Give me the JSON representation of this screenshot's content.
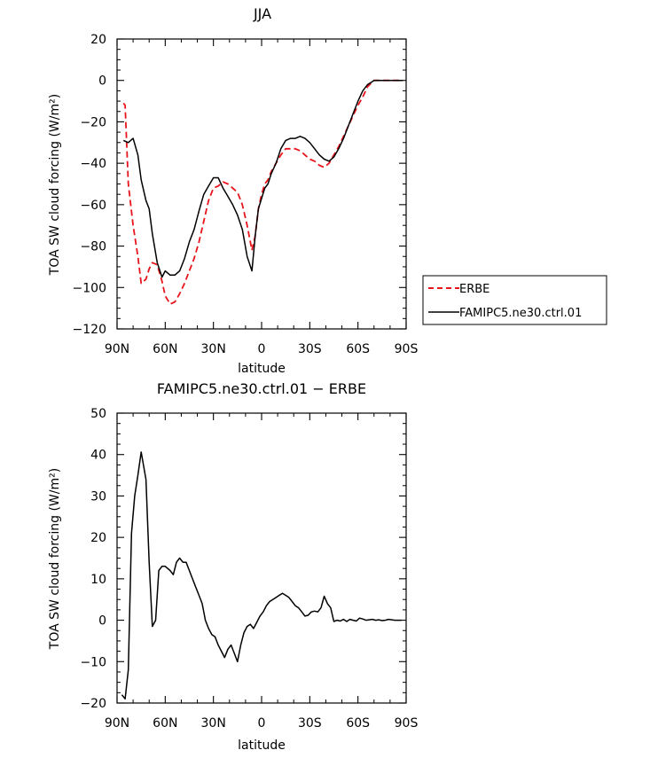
{
  "chart_data": [
    {
      "type": "line",
      "title": "JJA",
      "xlabel": "latitude",
      "ylabel": "TOA SW cloud forcing (W/m²)",
      "xlim": [
        90,
        -90
      ],
      "ylim": [
        -120,
        20
      ],
      "x_ticks": [
        90,
        60,
        30,
        0,
        -30,
        -60,
        -90
      ],
      "x_tick_labels": [
        "90N",
        "60N",
        "30N",
        "0",
        "30S",
        "60S",
        "90S"
      ],
      "y_ticks": [
        -120,
        -100,
        -80,
        -60,
        -40,
        -20,
        0,
        20
      ],
      "y_tick_labels": [
        "−120",
        "−100",
        "−80",
        "−60",
        "−40",
        "−20",
        "0",
        "20"
      ],
      "legend_position": "right",
      "series": [
        {
          "name": "ERBE",
          "color": "#e8141b",
          "dash": "dashed",
          "x": [
            86,
            85,
            83,
            80,
            77,
            75,
            72,
            70,
            68,
            65,
            62,
            60,
            57,
            54,
            51,
            48,
            45,
            42,
            39,
            36,
            33,
            30,
            27,
            24,
            21,
            18,
            15,
            12,
            9,
            6,
            4,
            2,
            0,
            -2,
            -4,
            -6,
            -9,
            -12,
            -15,
            -18,
            -21,
            -24,
            -27,
            -30,
            -33,
            -36,
            -39,
            -42,
            -45,
            -48,
            -51,
            -54,
            -57,
            -60,
            -63,
            -66,
            -70,
            -75,
            -80,
            -85,
            -88
          ],
          "y": [
            -11,
            -12,
            -50,
            -70,
            -85,
            -98,
            -96,
            -91,
            -88,
            -89,
            -97,
            -104,
            -108,
            -107,
            -103,
            -98,
            -92,
            -86,
            -78,
            -68,
            -58,
            -52,
            -51,
            -49,
            -50,
            -52,
            -54,
            -60,
            -70,
            -82,
            -75,
            -62,
            -55,
            -50,
            -48,
            -44,
            -40,
            -36,
            -33,
            -33,
            -33,
            -34,
            -36,
            -38,
            -39,
            -41,
            -42,
            -40,
            -36,
            -32,
            -27,
            -22,
            -17,
            -12,
            -8,
            -3,
            0,
            0,
            0,
            0,
            0
          ]
        },
        {
          "name": "FAMIPC5.ne30.ctrl.01",
          "color": "#000000",
          "dash": "solid",
          "x": [
            86,
            83,
            80,
            77,
            75,
            72,
            70,
            68,
            65,
            62,
            60,
            57,
            54,
            51,
            48,
            45,
            42,
            39,
            36,
            33,
            30,
            27,
            24,
            21,
            18,
            15,
            12,
            9,
            6,
            4,
            2,
            0,
            -2,
            -4,
            -6,
            -9,
            -12,
            -15,
            -18,
            -21,
            -24,
            -27,
            -30,
            -33,
            -36,
            -39,
            -42,
            -45,
            -48,
            -51,
            -54,
            -57,
            -60,
            -63,
            -66,
            -68,
            -70,
            -75,
            -80,
            -85,
            -88
          ],
          "y": [
            -29,
            -30,
            -28,
            -36,
            -48,
            -58,
            -62,
            -74,
            -88,
            -95,
            -92,
            -94,
            -94,
            -92,
            -86,
            -78,
            -72,
            -63,
            -55,
            -51,
            -47,
            -47,
            -52,
            -56,
            -60,
            -65,
            -72,
            -85,
            -92,
            -75,
            -62,
            -57,
            -52,
            -50,
            -45,
            -40,
            -33,
            -29,
            -28,
            -28,
            -27,
            -28,
            -30,
            -33,
            -36,
            -38,
            -39,
            -37,
            -33,
            -28,
            -22,
            -16,
            -10,
            -5,
            -2,
            -1,
            0,
            0,
            0,
            0,
            0
          ]
        }
      ]
    },
    {
      "type": "line",
      "title": "FAMIPC5.ne30.ctrl.01 − ERBE",
      "xlabel": "latitude",
      "ylabel": "TOA SW cloud forcing (W/m²)",
      "xlim": [
        90,
        -90
      ],
      "ylim": [
        -20,
        50
      ],
      "x_ticks": [
        90,
        60,
        30,
        0,
        -30,
        -60,
        -90
      ],
      "x_tick_labels": [
        "90N",
        "60N",
        "30N",
        "0",
        "30S",
        "60S",
        "90S"
      ],
      "y_ticks": [
        -20,
        -10,
        0,
        10,
        20,
        30,
        40,
        50
      ],
      "y_tick_labels": [
        "−20",
        "−10",
        "0",
        "10",
        "20",
        "30",
        "40",
        "50"
      ],
      "series": [
        {
          "color": "#000000",
          "dash": "solid",
          "x": [
            87,
            85,
            83,
            81,
            79,
            77,
            75,
            72,
            70,
            68,
            66,
            64,
            62,
            60,
            57,
            55,
            53,
            51,
            49,
            47,
            45,
            43,
            41,
            39,
            37,
            35,
            33,
            31,
            29,
            27,
            25,
            23,
            21,
            19,
            17,
            15,
            13,
            11,
            9,
            7,
            5,
            3,
            1,
            -1,
            -3,
            -5,
            -7,
            -9,
            -11,
            -13,
            -15,
            -17,
            -19,
            -21,
            -23,
            -25,
            -27,
            -29,
            -31,
            -33,
            -35,
            -37,
            -39,
            -41,
            -43,
            -45,
            -47,
            -49,
            -51,
            -53,
            -55,
            -57,
            -59,
            -61,
            -63,
            -65,
            -67,
            -69,
            -71,
            -73,
            -75,
            -77,
            -79,
            -81,
            -83,
            -85,
            -87
          ],
          "y": [
            -18,
            -19,
            -12,
            21,
            30,
            35,
            40.6,
            34,
            14,
            -1.5,
            0,
            12,
            13,
            13,
            12,
            11,
            14,
            15,
            14,
            14,
            12,
            10,
            8,
            6,
            4,
            0,
            -2,
            -3.5,
            -4,
            -6,
            -7.5,
            -9,
            -7,
            -6,
            -8,
            -10,
            -6,
            -3,
            -1.5,
            -1,
            -2,
            -0.5,
            1,
            2,
            3.5,
            4.5,
            5,
            5.5,
            6,
            6.5,
            6,
            5.5,
            4.5,
            3.5,
            3,
            2,
            1,
            1.2,
            2,
            2.2,
            2,
            3,
            5.8,
            4,
            3,
            -0.3,
            0,
            -0.2,
            0.2,
            -0.3,
            0.2,
            0,
            -0.2,
            0.5,
            0.3,
            0,
            0.1,
            0.2,
            0,
            0.1,
            -0.1,
            0,
            0.2,
            0.1,
            0,
            0,
            0
          ]
        }
      ]
    }
  ]
}
